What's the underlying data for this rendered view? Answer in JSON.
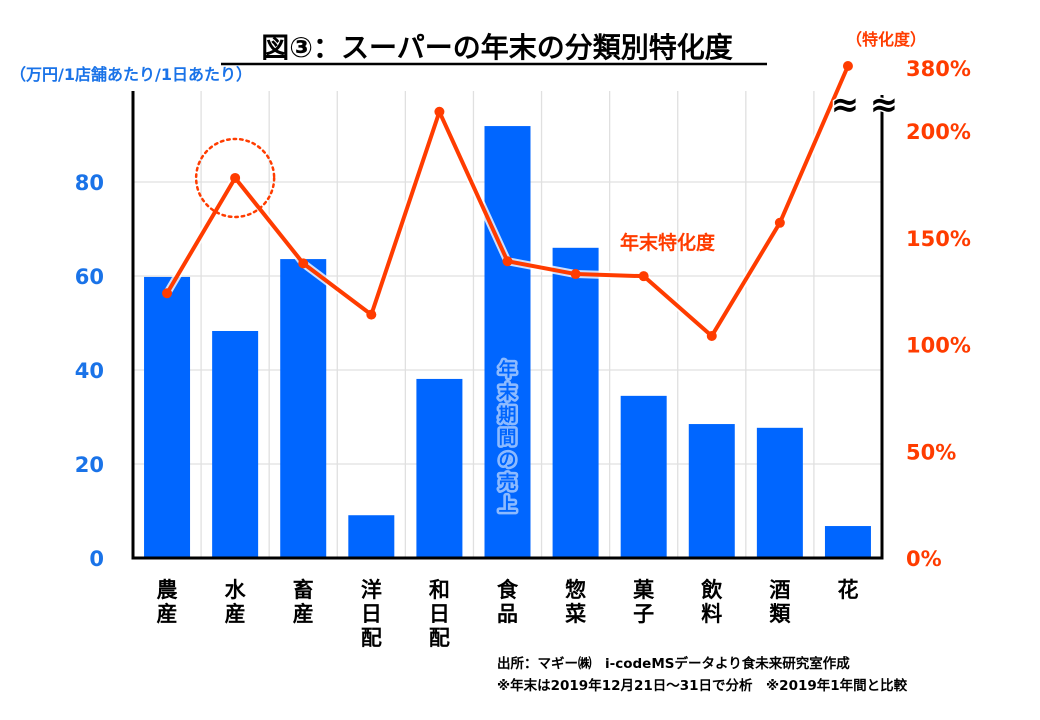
{
  "chart_data": {
    "type": "bar+line",
    "title": "図③：スーパーの年末の分類別特化度",
    "categories": [
      "農産",
      "水産",
      "畜産",
      "洋日配",
      "和日配",
      "食品",
      "惣菜",
      "菓子",
      "飲料",
      "酒類",
      "花"
    ],
    "series": [
      {
        "name": "年末期間の売上",
        "type": "bar",
        "axis": "left",
        "color": "#0066ff",
        "values": [
          59.8,
          48.3,
          63.6,
          9.1,
          38.1,
          91.9,
          66.0,
          34.5,
          28.5,
          27.7,
          6.8
        ]
      },
      {
        "name": "年末特化度",
        "type": "line",
        "axis": "right",
        "color": "#ff3c00",
        "values": [
          124,
          178,
          138,
          114,
          209,
          139,
          133,
          132,
          104,
          157,
          380
        ]
      }
    ],
    "left_axis": {
      "label": "（万円/1店舗あたり/1日あたり）",
      "ticks": [
        "0",
        "20",
        "40",
        "60",
        "80"
      ],
      "tick_values": [
        0,
        20,
        40,
        60,
        80
      ],
      "ylim": [
        0,
        100
      ]
    },
    "right_axis": {
      "label": "（特化度）",
      "ticks": [
        "0%",
        "50%",
        "100%",
        "150%",
        "200%",
        "380%"
      ],
      "tick_values": [
        0,
        50,
        100,
        150,
        200,
        380
      ],
      "ylim": [
        0,
        200
      ],
      "axis_break": true,
      "break_symbol": "≈"
    },
    "annotations": {
      "bar_label": "年末期間の売上",
      "line_label": "年末特化度",
      "highlight_category": "水産"
    },
    "grid": true,
    "legend": "none",
    "source_lines": [
      "出所：マギー㈱　i-codeMSデータより食未来研究室作成",
      "※年末は2019年12月21日～31日で分析　※2019年1年間と比較"
    ]
  }
}
